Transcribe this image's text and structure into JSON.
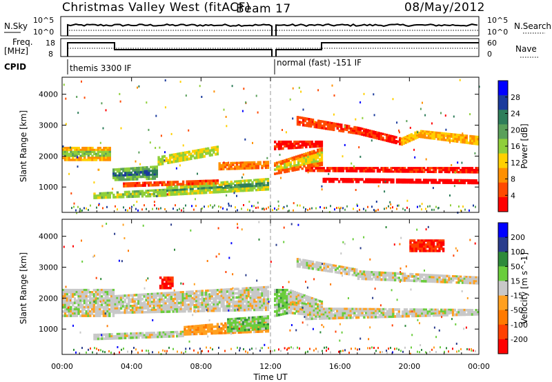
{
  "header": {
    "title": "Christmas Valley West (fitACF)",
    "beam": "Beam 17",
    "date": "08/May/2012"
  },
  "top_panels": {
    "nsky_label": "N.Sky",
    "nsky_ticks": [
      "10^5",
      "10^0"
    ],
    "nsearch_label": "N.Search",
    "nsearch_ticks": [
      "10^5",
      "10^0"
    ],
    "freq_label_1": "Freq.",
    "freq_label_2": "[MHz]",
    "freq_ticks": [
      "18",
      "8"
    ],
    "nave_label": "Nave",
    "nave_ticks": [
      "60",
      "0"
    ],
    "cpid_label": "CPID",
    "cpid_modes": [
      {
        "label": "themis 3300 IF",
        "start": 0.4,
        "end": 12.0
      },
      {
        "label": "normal (fast) -151 IF",
        "start": 12.1,
        "end": 24.0
      }
    ]
  },
  "x_axis": {
    "label": "Time UT",
    "ticks": [
      "00:00",
      "04:00",
      "08:00",
      "12:00",
      "16:00",
      "20:00",
      "00:00"
    ]
  },
  "power_panel": {
    "ylabel": "Slant Range [km]",
    "yticks": [
      "4000",
      "3000",
      "2000",
      "1000"
    ],
    "colorbar_label": "Power [dB]",
    "colorbar_ticks": [
      "28",
      "24",
      "20",
      "16",
      "12",
      "8",
      "4"
    ]
  },
  "velocity_panel": {
    "ylabel": "Slant Range [km]",
    "yticks": [
      "4000",
      "3000",
      "2000",
      "1000"
    ],
    "colorbar_label": "Velocity [m s^-1]",
    "colorbar_ticks": [
      "200",
      "100",
      "50",
      "15",
      "-15",
      "-50",
      "-100",
      "-200"
    ]
  },
  "colors": {
    "power_scale": [
      "#0000ff",
      "#1a3a9c",
      "#2e7d5a",
      "#5aa05a",
      "#8fcf3a",
      "#ffd000",
      "#ff9000",
      "#ff4a00",
      "#ff0000"
    ],
    "velocity_scale": [
      "#0000ff",
      "#2a3c8c",
      "#2e8a3a",
      "#6acd3c",
      "#c8c8c8",
      "#ffa020",
      "#ff7a00",
      "#ff4000",
      "#ff0000"
    ]
  },
  "chart_data": [
    {
      "type": "heatmap",
      "name": "Power",
      "x_unit": "hours UT",
      "y_unit": "km",
      "xlim": [
        0,
        24
      ],
      "ylim": [
        180,
        4550
      ],
      "value_range": [
        0,
        32
      ],
      "bands": [
        {
          "t": [
            0,
            2.8
          ],
          "r0": [
            1850,
            1850
          ],
          "r1": [
            2300,
            2300
          ],
          "v": 17
        },
        {
          "t": [
            2.9,
            5.5
          ],
          "r0": [
            1200,
            1250
          ],
          "r1": [
            1600,
            1700
          ],
          "v": 26
        },
        {
          "t": [
            5.5,
            9.0
          ],
          "r0": [
            1700,
            2050
          ],
          "r1": [
            2000,
            2350
          ],
          "v": 22
        },
        {
          "t": [
            9.0,
            11.9
          ],
          "r0": [
            1550,
            1600
          ],
          "r1": [
            1800,
            1850
          ],
          "v": 15
        },
        {
          "t": [
            1.8,
            6.0
          ],
          "r0": [
            620,
            700
          ],
          "r1": [
            820,
            950
          ],
          "v": 24
        },
        {
          "t": [
            6.0,
            11.9
          ],
          "r0": [
            720,
            900
          ],
          "r1": [
            1050,
            1300
          ],
          "v": 23
        },
        {
          "t": [
            3.5,
            9.0
          ],
          "r0": [
            1000,
            1100
          ],
          "r1": [
            1150,
            1250
          ],
          "v": 12
        },
        {
          "t": [
            12.2,
            15.0
          ],
          "r0": [
            1400,
            1700
          ],
          "r1": [
            1800,
            2300
          ],
          "v": 13
        },
        {
          "t": [
            12.2,
            15.0
          ],
          "r0": [
            2200,
            2300
          ],
          "r1": [
            2500,
            2500
          ],
          "v": 8
        },
        {
          "t": [
            13.5,
            17.0
          ],
          "r0": [
            3000,
            2700
          ],
          "r1": [
            3300,
            2950
          ],
          "v": 11
        },
        {
          "t": [
            17.0,
            19.5
          ],
          "r0": [
            2700,
            2350
          ],
          "r1": [
            2950,
            2600
          ],
          "v": 10
        },
        {
          "t": [
            19.5,
            20.5
          ],
          "r0": [
            2350,
            2600
          ],
          "r1": [
            2600,
            2850
          ],
          "v": 19
        },
        {
          "t": [
            20.5,
            24.0
          ],
          "r0": [
            2600,
            2350
          ],
          "r1": [
            2850,
            2650
          ],
          "v": 18
        },
        {
          "t": [
            14.0,
            24.0
          ],
          "r0": [
            1500,
            1450
          ],
          "r1": [
            1650,
            1650
          ],
          "v": 9
        },
        {
          "t": [
            15.0,
            24.0
          ],
          "r0": [
            1150,
            1100
          ],
          "r1": [
            1300,
            1250
          ],
          "v": 7
        }
      ]
    },
    {
      "type": "heatmap",
      "name": "Velocity",
      "x_unit": "hours UT",
      "y_unit": "km",
      "xlim": [
        0,
        24
      ],
      "ylim": [
        180,
        4550
      ],
      "value_range": [
        -250,
        250
      ],
      "bands": [
        {
          "t": [
            0,
            3.0
          ],
          "r0": [
            1400,
            1400
          ],
          "r1": [
            2300,
            2300
          ],
          "v": 0
        },
        {
          "t": [
            3.0,
            11.9
          ],
          "r0": [
            1500,
            1600
          ],
          "r1": [
            2100,
            2400
          ],
          "v": 0
        },
        {
          "t": [
            1.8,
            7.0
          ],
          "r0": [
            650,
            750
          ],
          "r1": [
            850,
            950
          ],
          "v": 5
        },
        {
          "t": [
            7.0,
            11.9
          ],
          "r0": [
            800,
            900
          ],
          "r1": [
            1100,
            1350
          ],
          "v": -70
        },
        {
          "t": [
            9.5,
            11.9
          ],
          "r0": [
            900,
            1000
          ],
          "r1": [
            1350,
            1450
          ],
          "v": 60
        },
        {
          "t": [
            5.6,
            6.4
          ],
          "r0": [
            2300,
            2300
          ],
          "r1": [
            2700,
            2700
          ],
          "v": -220
        },
        {
          "t": [
            12.2,
            13.0
          ],
          "r0": [
            1400,
            1500
          ],
          "r1": [
            2300,
            2300
          ],
          "v": 60
        },
        {
          "t": [
            13.0,
            15.0
          ],
          "r0": [
            1500,
            1400
          ],
          "r1": [
            2300,
            1900
          ],
          "v": 0
        },
        {
          "t": [
            13.5,
            17.0
          ],
          "r0": [
            3000,
            2700
          ],
          "r1": [
            3300,
            2950
          ],
          "v": 0
        },
        {
          "t": [
            17.0,
            24.0
          ],
          "r0": [
            2600,
            2450
          ],
          "r1": [
            2900,
            2700
          ],
          "v": 0
        },
        {
          "t": [
            14.0,
            24.0
          ],
          "r0": [
            1300,
            1450
          ],
          "r1": [
            1700,
            1650
          ],
          "v": 0
        },
        {
          "t": [
            20.0,
            22.0
          ],
          "r0": [
            3500,
            3500
          ],
          "r1": [
            3900,
            3900
          ],
          "v": -220
        }
      ]
    }
  ]
}
